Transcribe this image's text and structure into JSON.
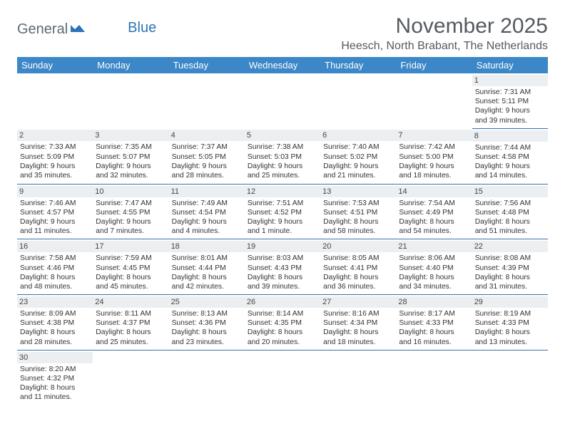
{
  "brand": {
    "part1": "General",
    "part2": "Blue"
  },
  "title": "November 2025",
  "location": "Heesch, North Brabant, The Netherlands",
  "colors": {
    "header_bg": "#3b87c8",
    "rule": "#3b6fa8",
    "daynum_bg": "#eceff1"
  },
  "weekdays": [
    "Sunday",
    "Monday",
    "Tuesday",
    "Wednesday",
    "Thursday",
    "Friday",
    "Saturday"
  ],
  "weeks": [
    [
      null,
      null,
      null,
      null,
      null,
      null,
      {
        "n": "1",
        "sr": "Sunrise: 7:31 AM",
        "ss": "Sunset: 5:11 PM",
        "d1": "Daylight: 9 hours",
        "d2": "and 39 minutes."
      }
    ],
    [
      {
        "n": "2",
        "sr": "Sunrise: 7:33 AM",
        "ss": "Sunset: 5:09 PM",
        "d1": "Daylight: 9 hours",
        "d2": "and 35 minutes."
      },
      {
        "n": "3",
        "sr": "Sunrise: 7:35 AM",
        "ss": "Sunset: 5:07 PM",
        "d1": "Daylight: 9 hours",
        "d2": "and 32 minutes."
      },
      {
        "n": "4",
        "sr": "Sunrise: 7:37 AM",
        "ss": "Sunset: 5:05 PM",
        "d1": "Daylight: 9 hours",
        "d2": "and 28 minutes."
      },
      {
        "n": "5",
        "sr": "Sunrise: 7:38 AM",
        "ss": "Sunset: 5:03 PM",
        "d1": "Daylight: 9 hours",
        "d2": "and 25 minutes."
      },
      {
        "n": "6",
        "sr": "Sunrise: 7:40 AM",
        "ss": "Sunset: 5:02 PM",
        "d1": "Daylight: 9 hours",
        "d2": "and 21 minutes."
      },
      {
        "n": "7",
        "sr": "Sunrise: 7:42 AM",
        "ss": "Sunset: 5:00 PM",
        "d1": "Daylight: 9 hours",
        "d2": "and 18 minutes."
      },
      {
        "n": "8",
        "sr": "Sunrise: 7:44 AM",
        "ss": "Sunset: 4:58 PM",
        "d1": "Daylight: 9 hours",
        "d2": "and 14 minutes."
      }
    ],
    [
      {
        "n": "9",
        "sr": "Sunrise: 7:46 AM",
        "ss": "Sunset: 4:57 PM",
        "d1": "Daylight: 9 hours",
        "d2": "and 11 minutes."
      },
      {
        "n": "10",
        "sr": "Sunrise: 7:47 AM",
        "ss": "Sunset: 4:55 PM",
        "d1": "Daylight: 9 hours",
        "d2": "and 7 minutes."
      },
      {
        "n": "11",
        "sr": "Sunrise: 7:49 AM",
        "ss": "Sunset: 4:54 PM",
        "d1": "Daylight: 9 hours",
        "d2": "and 4 minutes."
      },
      {
        "n": "12",
        "sr": "Sunrise: 7:51 AM",
        "ss": "Sunset: 4:52 PM",
        "d1": "Daylight: 9 hours",
        "d2": "and 1 minute."
      },
      {
        "n": "13",
        "sr": "Sunrise: 7:53 AM",
        "ss": "Sunset: 4:51 PM",
        "d1": "Daylight: 8 hours",
        "d2": "and 58 minutes."
      },
      {
        "n": "14",
        "sr": "Sunrise: 7:54 AM",
        "ss": "Sunset: 4:49 PM",
        "d1": "Daylight: 8 hours",
        "d2": "and 54 minutes."
      },
      {
        "n": "15",
        "sr": "Sunrise: 7:56 AM",
        "ss": "Sunset: 4:48 PM",
        "d1": "Daylight: 8 hours",
        "d2": "and 51 minutes."
      }
    ],
    [
      {
        "n": "16",
        "sr": "Sunrise: 7:58 AM",
        "ss": "Sunset: 4:46 PM",
        "d1": "Daylight: 8 hours",
        "d2": "and 48 minutes."
      },
      {
        "n": "17",
        "sr": "Sunrise: 7:59 AM",
        "ss": "Sunset: 4:45 PM",
        "d1": "Daylight: 8 hours",
        "d2": "and 45 minutes."
      },
      {
        "n": "18",
        "sr": "Sunrise: 8:01 AM",
        "ss": "Sunset: 4:44 PM",
        "d1": "Daylight: 8 hours",
        "d2": "and 42 minutes."
      },
      {
        "n": "19",
        "sr": "Sunrise: 8:03 AM",
        "ss": "Sunset: 4:43 PM",
        "d1": "Daylight: 8 hours",
        "d2": "and 39 minutes."
      },
      {
        "n": "20",
        "sr": "Sunrise: 8:05 AM",
        "ss": "Sunset: 4:41 PM",
        "d1": "Daylight: 8 hours",
        "d2": "and 36 minutes."
      },
      {
        "n": "21",
        "sr": "Sunrise: 8:06 AM",
        "ss": "Sunset: 4:40 PM",
        "d1": "Daylight: 8 hours",
        "d2": "and 34 minutes."
      },
      {
        "n": "22",
        "sr": "Sunrise: 8:08 AM",
        "ss": "Sunset: 4:39 PM",
        "d1": "Daylight: 8 hours",
        "d2": "and 31 minutes."
      }
    ],
    [
      {
        "n": "23",
        "sr": "Sunrise: 8:09 AM",
        "ss": "Sunset: 4:38 PM",
        "d1": "Daylight: 8 hours",
        "d2": "and 28 minutes."
      },
      {
        "n": "24",
        "sr": "Sunrise: 8:11 AM",
        "ss": "Sunset: 4:37 PM",
        "d1": "Daylight: 8 hours",
        "d2": "and 25 minutes."
      },
      {
        "n": "25",
        "sr": "Sunrise: 8:13 AM",
        "ss": "Sunset: 4:36 PM",
        "d1": "Daylight: 8 hours",
        "d2": "and 23 minutes."
      },
      {
        "n": "26",
        "sr": "Sunrise: 8:14 AM",
        "ss": "Sunset: 4:35 PM",
        "d1": "Daylight: 8 hours",
        "d2": "and 20 minutes."
      },
      {
        "n": "27",
        "sr": "Sunrise: 8:16 AM",
        "ss": "Sunset: 4:34 PM",
        "d1": "Daylight: 8 hours",
        "d2": "and 18 minutes."
      },
      {
        "n": "28",
        "sr": "Sunrise: 8:17 AM",
        "ss": "Sunset: 4:33 PM",
        "d1": "Daylight: 8 hours",
        "d2": "and 16 minutes."
      },
      {
        "n": "29",
        "sr": "Sunrise: 8:19 AM",
        "ss": "Sunset: 4:33 PM",
        "d1": "Daylight: 8 hours",
        "d2": "and 13 minutes."
      }
    ],
    [
      {
        "n": "30",
        "sr": "Sunrise: 8:20 AM",
        "ss": "Sunset: 4:32 PM",
        "d1": "Daylight: 8 hours",
        "d2": "and 11 minutes."
      },
      null,
      null,
      null,
      null,
      null,
      null
    ]
  ]
}
